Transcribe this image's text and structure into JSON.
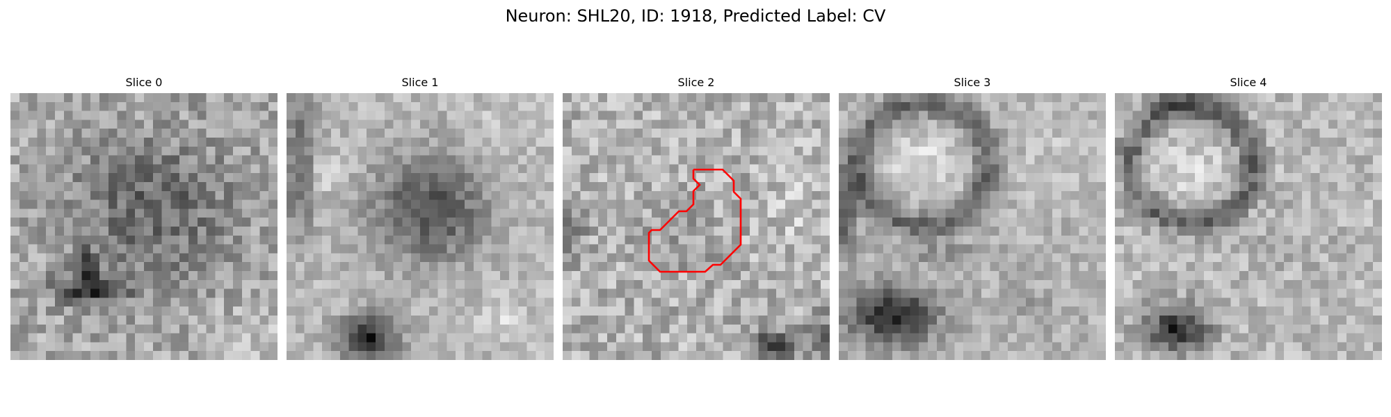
{
  "figure": {
    "suptitle": "Neuron: SHL20, ID: 1918, Predicted Label: CV"
  },
  "slices": [
    {
      "title": "Slice 0",
      "has_contour": false
    },
    {
      "title": "Slice 1",
      "has_contour": false
    },
    {
      "title": "Slice 2",
      "has_contour": true
    },
    {
      "title": "Slice 3",
      "has_contour": false
    },
    {
      "title": "Slice 4",
      "has_contour": false
    }
  ],
  "contour_color": "#ff0000"
}
